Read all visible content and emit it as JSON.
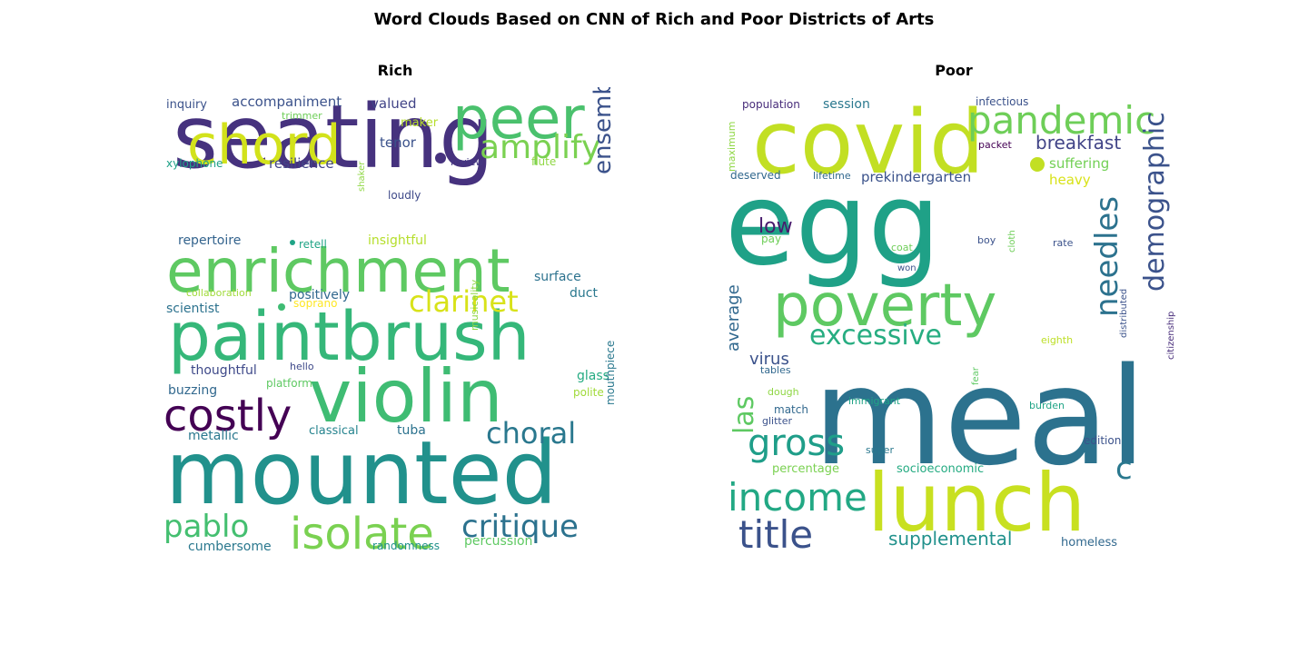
{
  "title": "Word Clouds Based on CNN of Rich and Poor Districts of Arts",
  "chart_data": [
    {
      "type": "wordcloud",
      "title": "Rich",
      "words": [
        {
          "text": "seating",
          "color": "#46327e"
        },
        {
          "text": "mounted",
          "color": "#21918c"
        },
        {
          "text": "paintbrush",
          "color": "#35b779"
        },
        {
          "text": "violin",
          "color": "#3fbc73"
        },
        {
          "text": "enrichment",
          "color": "#5ec962"
        },
        {
          "text": "peer",
          "color": "#4ac16d"
        },
        {
          "text": "chord",
          "color": "#d2e21b"
        },
        {
          "text": "isolate",
          "color": "#7ad151"
        },
        {
          "text": "costly",
          "color": "#440154"
        },
        {
          "text": "amplify",
          "color": "#7ad151"
        },
        {
          "text": "clarinet",
          "color": "#d8e219"
        },
        {
          "text": "critique",
          "color": "#2c728e"
        },
        {
          "text": "choral",
          "color": "#2a788e"
        },
        {
          "text": "pablo",
          "color": "#44bf70"
        },
        {
          "text": "ensemble",
          "color": "#3b528b"
        },
        {
          "text": "accompaniment",
          "color": "#3b528b"
        },
        {
          "text": "valued",
          "color": "#414487"
        },
        {
          "text": "resilience",
          "color": "#414487"
        },
        {
          "text": "tenor",
          "color": "#3b528b"
        },
        {
          "text": "repertoire",
          "color": "#33638d"
        },
        {
          "text": "insightful",
          "color": "#b5de2b"
        },
        {
          "text": "positively",
          "color": "#31688e"
        },
        {
          "text": "surface",
          "color": "#2c728e"
        },
        {
          "text": "scientist",
          "color": "#2c728e"
        },
        {
          "text": "soprano",
          "color": "#fde725"
        },
        {
          "text": "duct",
          "color": "#2a788e"
        },
        {
          "text": "thoughtful",
          "color": "#3e4989"
        },
        {
          "text": "buzzing",
          "color": "#31688e"
        },
        {
          "text": "metallic",
          "color": "#2a788e"
        },
        {
          "text": "classical",
          "color": "#25838e"
        },
        {
          "text": "tuba",
          "color": "#2c728e"
        },
        {
          "text": "cumbersome",
          "color": "#2a788e"
        },
        {
          "text": "percussion",
          "color": "#5ec962"
        },
        {
          "text": "glass",
          "color": "#25ab82"
        },
        {
          "text": "polite",
          "color": "#a0da39"
        },
        {
          "text": "inquiry",
          "color": "#3b528b"
        },
        {
          "text": "trimmer",
          "color": "#6ece58"
        },
        {
          "text": "maker",
          "color": "#b5de2b"
        },
        {
          "text": "xylophone",
          "color": "#1fa187"
        },
        {
          "text": "review",
          "color": "#443983"
        },
        {
          "text": "flute",
          "color": "#8fd744"
        },
        {
          "text": "loudly",
          "color": "#3e4989"
        },
        {
          "text": "shaker",
          "color": "#8fd744"
        },
        {
          "text": "retell",
          "color": "#20a486"
        },
        {
          "text": "collaboration",
          "color": "#a0da39"
        },
        {
          "text": "hello",
          "color": "#3e4989"
        },
        {
          "text": "platform",
          "color": "#5ec962"
        },
        {
          "text": "musicality",
          "color": "#8fd744"
        },
        {
          "text": "mouthpiece",
          "color": "#2a788e"
        },
        {
          "text": "randomness",
          "color": "#21918c"
        }
      ]
    },
    {
      "type": "wordcloud",
      "title": "Poor",
      "words": [
        {
          "text": "covid",
          "color": "#c2df23"
        },
        {
          "text": "egg",
          "color": "#1fa187"
        },
        {
          "text": "meal",
          "color": "#2c728e"
        },
        {
          "text": "lunch",
          "color": "#c8e020"
        },
        {
          "text": "poverty",
          "color": "#5ec962"
        },
        {
          "text": "pandemic",
          "color": "#6ece58"
        },
        {
          "text": "income",
          "color": "#22a884"
        },
        {
          "text": "title",
          "color": "#3b528b"
        },
        {
          "text": "demographic",
          "color": "#3b528b"
        },
        {
          "text": "needles",
          "color": "#2c728e"
        },
        {
          "text": "gross",
          "color": "#1f9e89"
        },
        {
          "text": "excessive",
          "color": "#27ad81"
        },
        {
          "text": "las",
          "color": "#5ec962"
        },
        {
          "text": "c",
          "color": "#2a788e"
        },
        {
          "text": "supplemental",
          "color": "#21918c"
        },
        {
          "text": "breakfast",
          "color": "#414487"
        },
        {
          "text": "low",
          "color": "#481b6d"
        },
        {
          "text": "virus",
          "color": "#3b528b"
        },
        {
          "text": "average",
          "color": "#31688e"
        },
        {
          "text": "prekindergarten",
          "color": "#3b528b"
        },
        {
          "text": "suffering",
          "color": "#73d056"
        },
        {
          "text": "heavy",
          "color": "#d8e219"
        },
        {
          "text": "deserved",
          "color": "#31688e"
        },
        {
          "text": "lifetime",
          "color": "#31688e"
        },
        {
          "text": "session",
          "color": "#2a788e"
        },
        {
          "text": "population",
          "color": "#472c7a"
        },
        {
          "text": "infectious",
          "color": "#3b528b"
        },
        {
          "text": "packet",
          "color": "#440154"
        },
        {
          "text": "maximum",
          "color": "#8fd744"
        },
        {
          "text": "pay",
          "color": "#6ece58"
        },
        {
          "text": "coat",
          "color": "#6ece58"
        },
        {
          "text": "boy",
          "color": "#3b528b"
        },
        {
          "text": "cloth",
          "color": "#6ece58"
        },
        {
          "text": "rate",
          "color": "#3b528b"
        },
        {
          "text": "won",
          "color": "#3b528b"
        },
        {
          "text": "distributed",
          "color": "#3b528b"
        },
        {
          "text": "citizenship",
          "color": "#472c7a"
        },
        {
          "text": "eighth",
          "color": "#bddf26"
        },
        {
          "text": "tables",
          "color": "#31688e"
        },
        {
          "text": "fear",
          "color": "#5ec962"
        },
        {
          "text": "dough",
          "color": "#8fd744"
        },
        {
          "text": "immigrant",
          "color": "#20a486"
        },
        {
          "text": "match",
          "color": "#31688e"
        },
        {
          "text": "glitter",
          "color": "#3b528b"
        },
        {
          "text": "burden",
          "color": "#20a486"
        },
        {
          "text": "super",
          "color": "#2a788e"
        },
        {
          "text": "edition",
          "color": "#3b528b"
        },
        {
          "text": "percentage",
          "color": "#7ad151"
        },
        {
          "text": "socioeconomic",
          "color": "#25ab82"
        },
        {
          "text": "homeless",
          "color": "#31688e"
        }
      ]
    }
  ]
}
